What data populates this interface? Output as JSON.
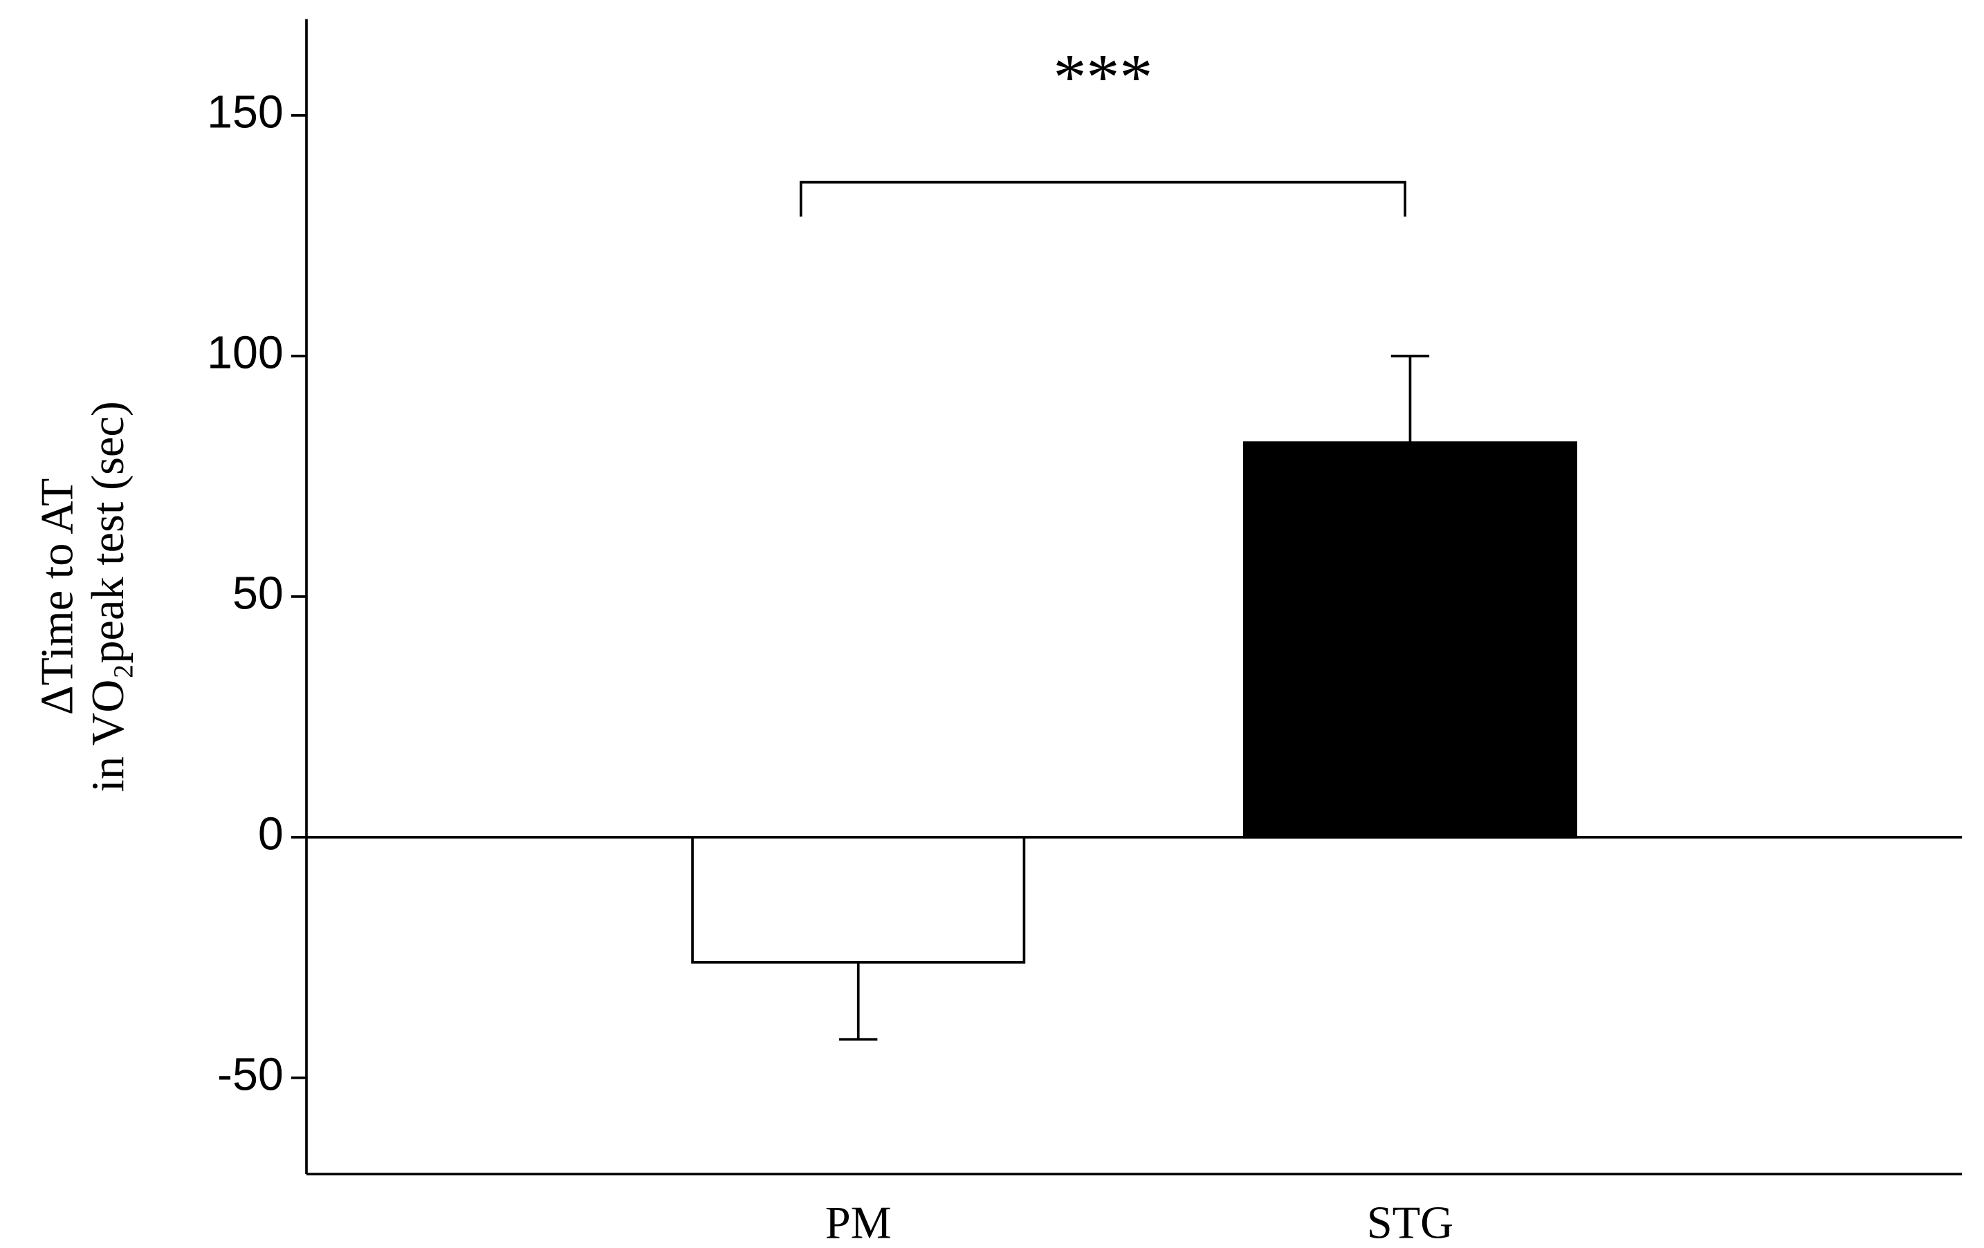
{
  "chart_data": {
    "type": "bar",
    "y_label": [
      "ΔTime to AT",
      "in VO₂peak test (sec)"
    ],
    "categories": [
      "PM",
      "STG"
    ],
    "values": [
      -26,
      82
    ],
    "errors": [
      16,
      18
    ],
    "colors": [
      "#ffffff",
      "#000000"
    ],
    "ylim": [
      -70,
      170
    ],
    "yticks": [
      -50,
      0,
      50,
      100,
      150
    ],
    "annotation": "***"
  }
}
